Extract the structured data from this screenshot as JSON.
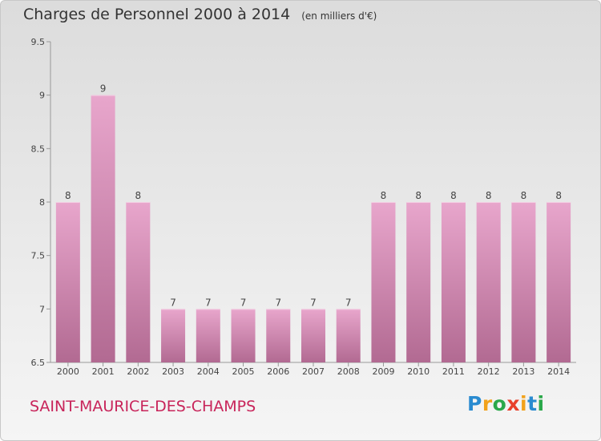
{
  "header": {
    "title": "Charges de Personnel 2000 à 2014",
    "subtitle": "(en milliers d'€)"
  },
  "footer": {
    "city": "SAINT-MAURICE-DES-CHAMPS",
    "logo": "Proxiti"
  },
  "colors": {
    "bar_top": "#e8a6cc",
    "bar_bottom": "#b26a92",
    "city_text": "#c8245a"
  },
  "chart_data": {
    "type": "bar",
    "title": "Charges de Personnel 2000 à 2014",
    "subtitle": "(en milliers d'€)",
    "xlabel": "",
    "ylabel": "",
    "categories": [
      "2000",
      "2001",
      "2002",
      "2003",
      "2004",
      "2005",
      "2006",
      "2007",
      "2008",
      "2009",
      "2010",
      "2011",
      "2012",
      "2013",
      "2014"
    ],
    "values": [
      8,
      9,
      8,
      7,
      7,
      7,
      7,
      7,
      7,
      8,
      8,
      8,
      8,
      8,
      8
    ],
    "data_labels": [
      "8",
      "9",
      "8",
      "7",
      "7",
      "7",
      "7",
      "7",
      "7",
      "8",
      "8",
      "8",
      "8",
      "8",
      "8"
    ],
    "ylim": [
      6.5,
      9.5
    ],
    "yticks": [
      6.5,
      7,
      7.5,
      8,
      8.5,
      9,
      9.5
    ],
    "ytick_labels": [
      "6.5",
      "7",
      "7.5",
      "8",
      "8.5",
      "9",
      "9.5"
    ],
    "grid": false,
    "legend": "none"
  }
}
